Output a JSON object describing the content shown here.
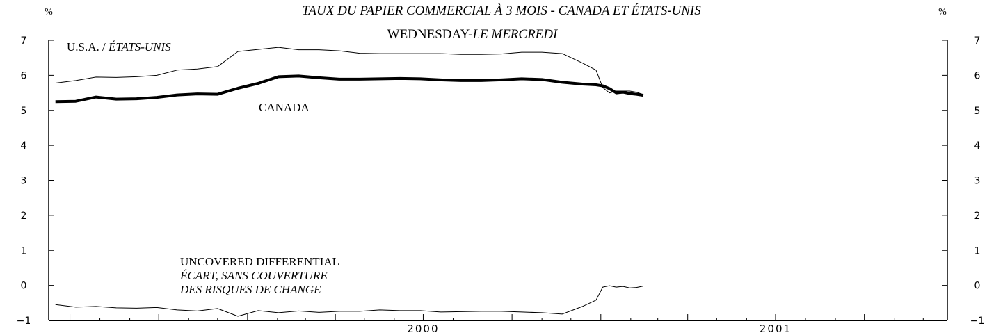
{
  "chart_data": {
    "type": "line",
    "title": "TAUX DU PAPIER COMMERCIAL À 3 MOIS - CANADA ET ÉTATS-UNIS",
    "subtitle_en": "WEDNESDAY-",
    "subtitle_fr": "LE MERCREDI",
    "ylabel_left": "%",
    "ylabel_right": "%",
    "ylim": [
      -1,
      7
    ],
    "yticks": [
      "−1",
      "0",
      "1",
      "2",
      "3",
      "4",
      "5",
      "6",
      "7"
    ],
    "xlim": [
      "1999-06-09",
      "2001-12-26"
    ],
    "xtick_labels": [
      {
        "label": "2000",
        "date": "2000-07-01"
      },
      {
        "label": "2001",
        "date": "2001-07-01"
      }
    ],
    "annotations": {
      "usa_en": "U.S.A. / ",
      "usa_fr": "ÉTATS-UNIS",
      "canada": "CANADA",
      "diff_en": "UNCOVERED DIFFERENTIAL",
      "diff_fr_1": "ÉCART, SANS COUVERTURE",
      "diff_fr_2": "DES RISQUES DE CHANGE"
    },
    "x": [
      "1999-06-16",
      "1999-07-07",
      "1999-07-28",
      "1999-08-18",
      "1999-09-08",
      "1999-09-29",
      "1999-10-20",
      "1999-11-10",
      "1999-12-01",
      "1999-12-22",
      "2000-01-12",
      "2000-02-02",
      "2000-02-23",
      "2000-03-15",
      "2000-04-05",
      "2000-04-26",
      "2000-05-17",
      "2000-06-07",
      "2000-06-28",
      "2000-07-19",
      "2000-08-09",
      "2000-08-30",
      "2000-09-20",
      "2000-10-11",
      "2000-11-01",
      "2000-11-22",
      "2000-12-13",
      "2000-12-27",
      "2001-01-03",
      "2001-01-10",
      "2001-01-17",
      "2001-01-24",
      "2001-01-31",
      "2001-02-07",
      "2001-02-14"
    ],
    "series": [
      {
        "name": "U.S.A. / ÉTATS-UNIS",
        "values": [
          5.78,
          5.85,
          5.95,
          5.94,
          5.96,
          6.0,
          6.15,
          6.18,
          6.25,
          6.68,
          6.74,
          6.8,
          6.73,
          6.73,
          6.7,
          6.63,
          6.62,
          6.62,
          6.62,
          6.62,
          6.6,
          6.6,
          6.61,
          6.66,
          6.66,
          6.62,
          6.35,
          6.15,
          5.65,
          5.5,
          5.55,
          5.55,
          5.55,
          5.52,
          5.45
        ]
      },
      {
        "name": "CANADA",
        "values": [
          5.25,
          5.26,
          5.38,
          5.32,
          5.33,
          5.37,
          5.44,
          5.47,
          5.46,
          5.63,
          5.77,
          5.96,
          5.98,
          5.93,
          5.89,
          5.89,
          5.9,
          5.91,
          5.9,
          5.87,
          5.85,
          5.85,
          5.87,
          5.9,
          5.88,
          5.8,
          5.75,
          5.73,
          5.7,
          5.62,
          5.5,
          5.52,
          5.48,
          5.46,
          5.43
        ]
      },
      {
        "name": "UNCOVERED DIFFERENTIAL",
        "values": [
          -0.55,
          -0.62,
          -0.6,
          -0.64,
          -0.65,
          -0.63,
          -0.7,
          -0.73,
          -0.66,
          -0.88,
          -0.72,
          -0.78,
          -0.73,
          -0.77,
          -0.74,
          -0.74,
          -0.7,
          -0.72,
          -0.72,
          -0.76,
          -0.75,
          -0.74,
          -0.74,
          -0.76,
          -0.78,
          -0.82,
          -0.6,
          -0.42,
          -0.05,
          -0.01,
          -0.05,
          -0.03,
          -0.07,
          -0.06,
          -0.02
        ]
      }
    ]
  }
}
